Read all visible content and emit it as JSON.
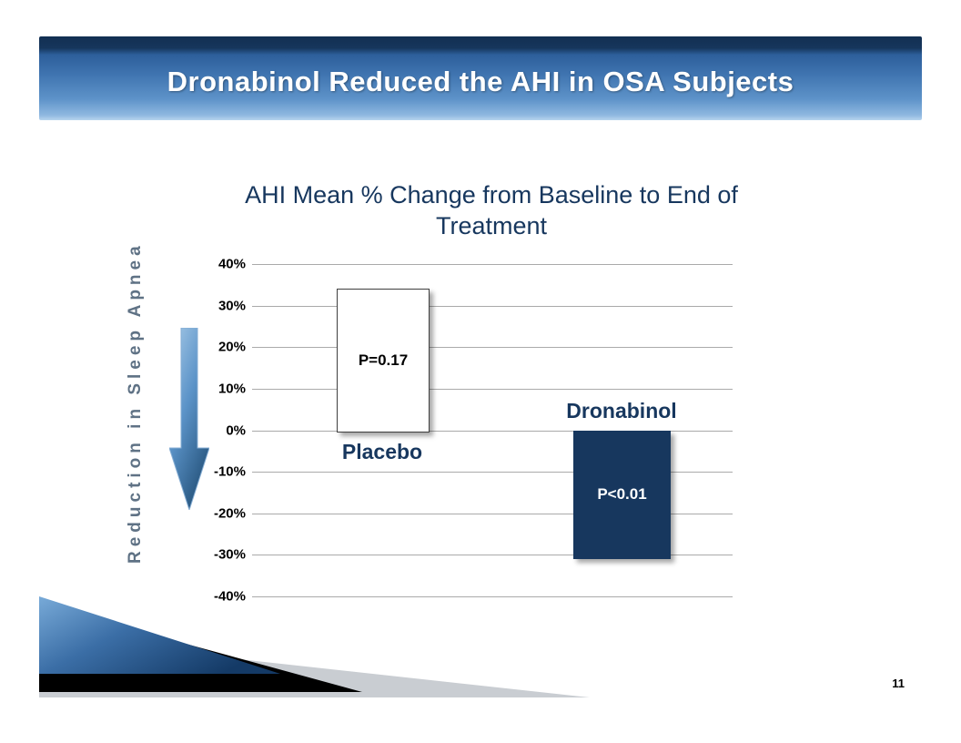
{
  "slide": {
    "title": "Dronabinol Reduced the AHI in OSA Subjects",
    "page_number": "11"
  },
  "chart_data": {
    "type": "bar",
    "title": "AHI Mean % Change from Baseline to End of Treatment",
    "ylabel": "Reduction in Sleep Apnea",
    "categories": [
      "Placebo",
      "Dronabinol"
    ],
    "values": [
      34,
      -31
    ],
    "bar_annotations": [
      "P=0.17",
      "P<0.01"
    ],
    "ylim": [
      -40,
      40
    ],
    "ytick_labels": [
      "40%",
      "30%",
      "20%",
      "10%",
      "0%",
      "-10%",
      "-20%",
      "-30%",
      "-40%"
    ],
    "grid": true,
    "legend": "none",
    "colors": {
      "placebo_bar_fill": "#ffffff",
      "placebo_bar_border": "#404040",
      "dronabinol_bar_fill": "#17375e",
      "navy_text": "#17375e",
      "ylabel_text": "#5f7285",
      "gridline": "#aaaaaa"
    }
  }
}
